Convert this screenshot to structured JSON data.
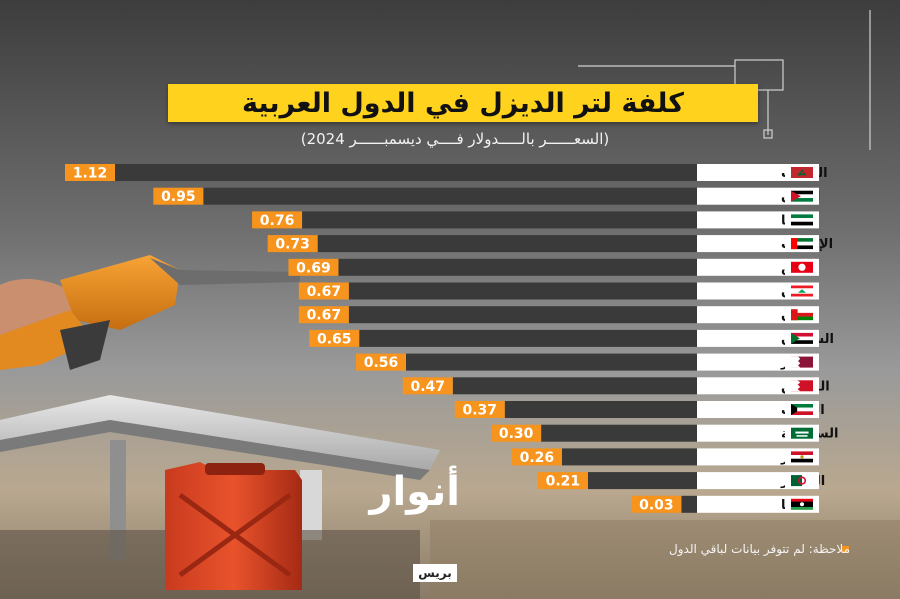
{
  "header": {
    "title": "كلفة لتر الديزل في الدول العربية",
    "subtitle": "(السعــــــر بالـــــدولار فــــي ديسمبــــــر 2024)"
  },
  "footer": {
    "note": "ملاحظة: لم تتوفر بيانات لباقي الدول",
    "logo": "أنوار",
    "logo_sub": "بريس"
  },
  "colors": {
    "bar": "#3a3a3a",
    "value_box": "#f7941d",
    "label_box": "#ffffff",
    "title_bg": "#ffd21e"
  },
  "chart_data": {
    "type": "bar",
    "orientation": "horizontal",
    "title": "كلفة لتر الديزل في الدول العربية",
    "subtitle": "(السعــــــر بالـــــدولار فــــي ديسمبــــــر 2024)",
    "categories": [
      "المغرب",
      "الأردن",
      "سوريا",
      "الإمارات",
      "تونس",
      "لبنان",
      "عمان",
      "السودان",
      "قطر",
      "البحرين",
      "الكويت",
      "السعودية",
      "مصر",
      "الجزائر",
      "ليبيا"
    ],
    "values": [
      1.12,
      0.95,
      0.76,
      0.73,
      0.69,
      0.67,
      0.67,
      0.65,
      0.56,
      0.47,
      0.37,
      0.3,
      0.26,
      0.21,
      0.03
    ],
    "value_labels": [
      "1.12",
      "0.95",
      "0.76",
      "0.73",
      "0.69",
      "0.67",
      "0.67",
      "0.65",
      "0.56",
      "0.47",
      "0.37",
      "0.30",
      "0.26",
      "0.21",
      "0.03"
    ],
    "flags": [
      "morocco",
      "jordan",
      "syria",
      "uae",
      "tunisia",
      "lebanon",
      "oman",
      "sudan",
      "qatar",
      "bahrain",
      "kuwait",
      "saudi",
      "egypt",
      "algeria",
      "libya"
    ],
    "xlim": [
      0,
      1.12
    ],
    "grid": false,
    "legend": "none"
  }
}
